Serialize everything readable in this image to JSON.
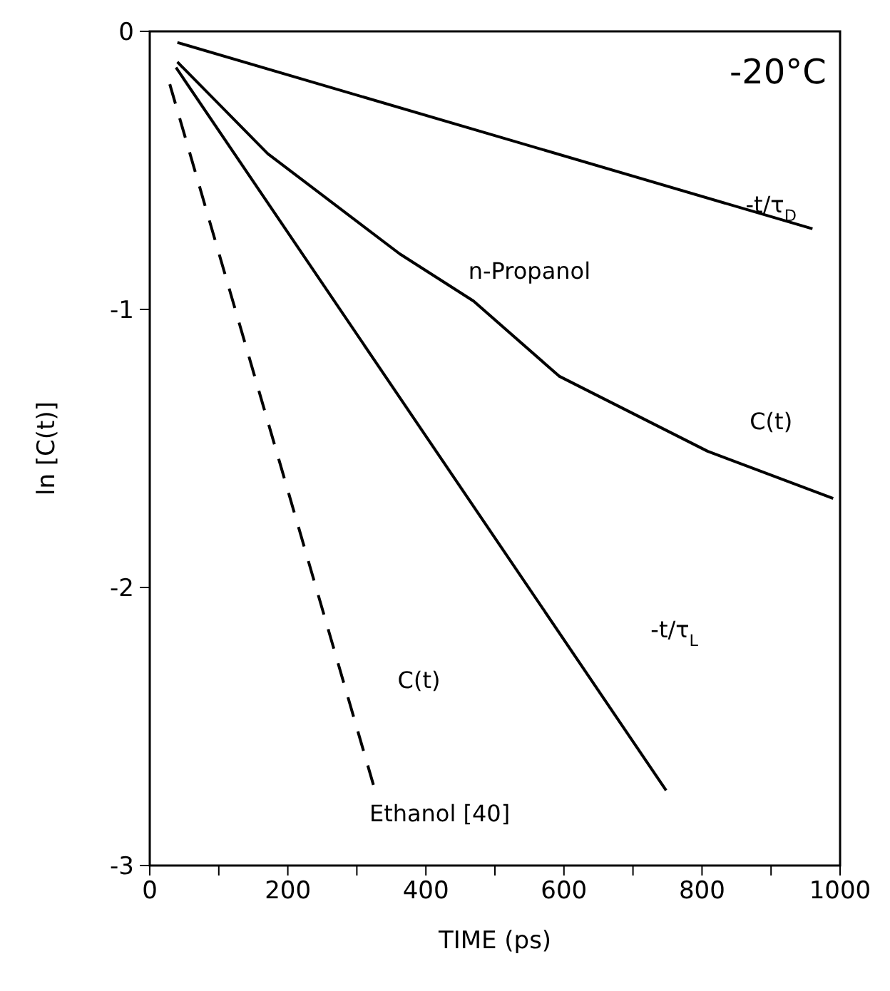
{
  "chart_data": {
    "type": "line",
    "xlabel": "TIME (ps)",
    "ylabel": "ln [C(t)]",
    "xlim": [
      0,
      1000
    ],
    "ylim": [
      -3,
      0
    ],
    "xticks": [
      0,
      {
        "value": 100,
        "label": null
      },
      200,
      {
        "value": 300,
        "label": null
      },
      400,
      {
        "value": 500,
        "label": null
      },
      600,
      {
        "value": 700,
        "label": null
      },
      800,
      {
        "value": 900,
        "label": null
      },
      1000
    ],
    "yticks": [
      -3,
      -2,
      -1,
      0
    ],
    "grid": false,
    "legend": false,
    "marker": "none",
    "series": [
      {
        "color": "#000000",
        "line_style": "solid",
        "x": [
          40,
          960
        ],
        "values": [
          -0.04,
          -0.71
        ]
      },
      {
        "color": "#000000",
        "line_style": "solid",
        "x": [
          40,
          171,
          362,
          469,
          593,
          808,
          990
        ],
        "values": [
          -0.11,
          -0.44,
          -0.8,
          -0.97,
          -1.24,
          -1.51,
          -1.68
        ]
      },
      {
        "color": "#000000",
        "line_style": "solid",
        "x": [
          38,
          748
        ],
        "values": [
          -0.13,
          -2.73
        ]
      },
      {
        "color": "#000000",
        "line_style": "dashed",
        "x": [
          29,
          324
        ],
        "values": [
          -0.19,
          -2.71
        ]
      }
    ],
    "annotations": [
      "-20°C",
      "-t/τ$_{D}$",
      "n-Propanol",
      "C(t)",
      "-t/τ$_{L}$",
      "C(t)",
      "Ethanol [40]"
    ]
  }
}
